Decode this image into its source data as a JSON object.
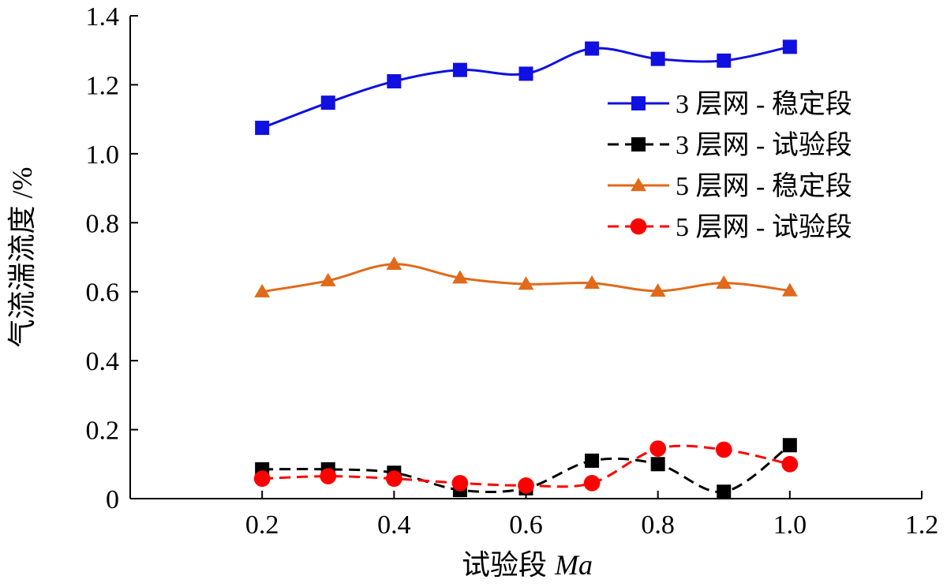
{
  "chart_data": {
    "type": "line",
    "title": "",
    "xlabel": "试验段",
    "xlabel_symbol": "Ma",
    "ylabel": "气流湍流度 /%",
    "xlim": [
      0,
      1.2
    ],
    "ylim": [
      0,
      1.4
    ],
    "x_ticks": [
      "0.2",
      "0.4",
      "0.6",
      "0.8",
      "1.0",
      "1.2"
    ],
    "y_ticks": [
      "0",
      "0.2",
      "0.4",
      "0.6",
      "0.8",
      "1.0",
      "1.2",
      "1.4"
    ],
    "grid": false,
    "legend_position": "top-right",
    "x": [
      0.2,
      0.3,
      0.4,
      0.5,
      0.6,
      0.7,
      0.8,
      0.9,
      1.0
    ],
    "series": [
      {
        "name": "3 层网 - 稳定段",
        "color": "#1010e0",
        "marker": "square",
        "dash": "solid",
        "values": [
          1.075,
          1.148,
          1.21,
          1.243,
          1.232,
          1.305,
          1.275,
          1.27,
          1.31
        ]
      },
      {
        "name": "3 层网 - 试验段",
        "color": "#000000",
        "marker": "square",
        "dash": "dashed",
        "values": [
          0.085,
          0.085,
          0.075,
          0.025,
          0.03,
          0.11,
          0.1,
          0.02,
          0.155
        ]
      },
      {
        "name": "5 层网 - 稳定段",
        "color": "#e06a1a",
        "marker": "triangle",
        "dash": "solid",
        "values": [
          0.6,
          0.632,
          0.68,
          0.64,
          0.622,
          0.625,
          0.602,
          0.625,
          0.603
        ]
      },
      {
        "name": "5 层网 - 试验段",
        "color": "#ff0000",
        "marker": "circle",
        "dash": "dashed",
        "values": [
          0.058,
          0.065,
          0.058,
          0.045,
          0.038,
          0.045,
          0.145,
          0.142,
          0.1
        ]
      }
    ]
  }
}
